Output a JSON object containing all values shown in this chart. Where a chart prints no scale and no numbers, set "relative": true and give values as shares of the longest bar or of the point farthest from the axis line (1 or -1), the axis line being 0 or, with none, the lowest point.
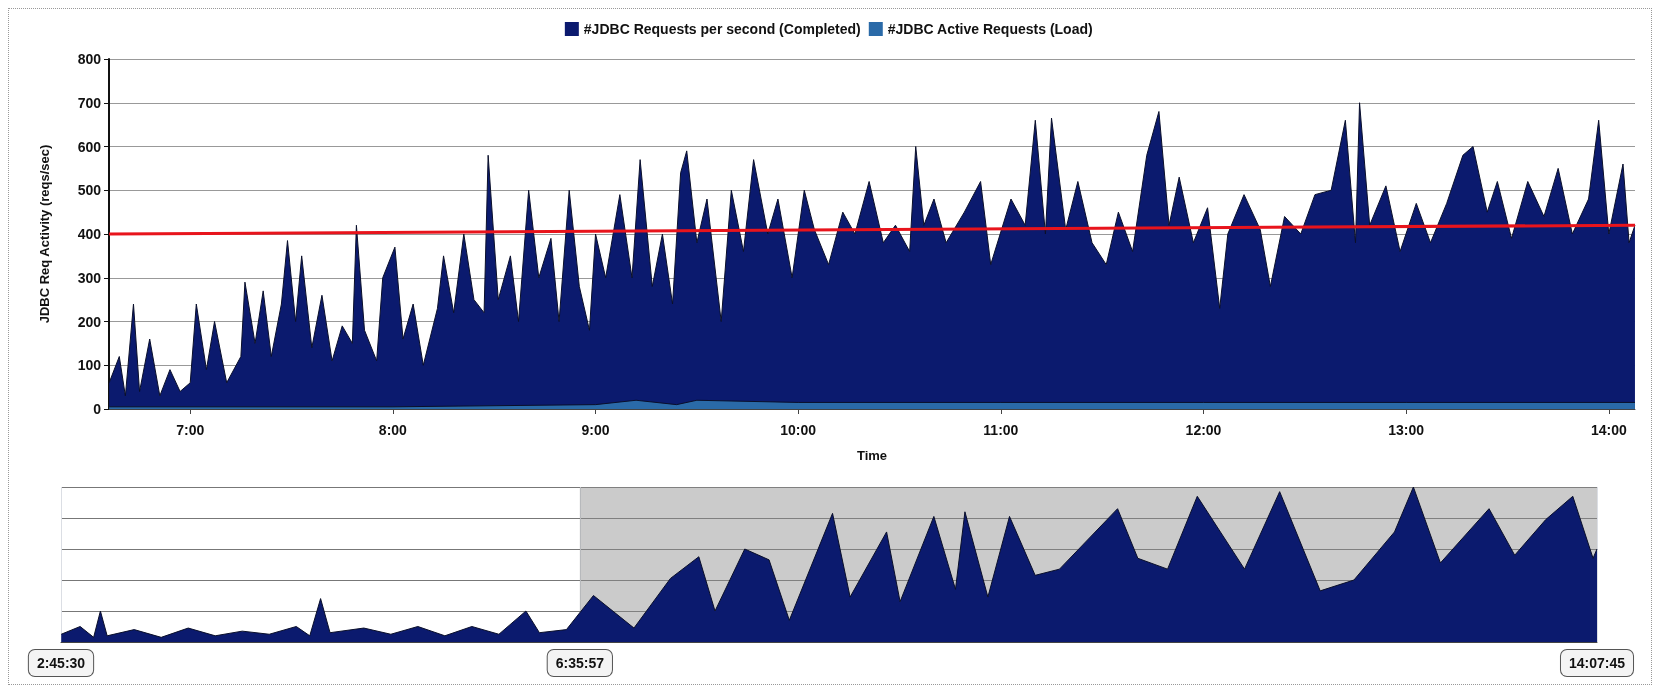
{
  "chart_data": [
    {
      "type": "area",
      "xlabel": "Time",
      "ylabel": "JDBC Req Activity (reqs/sec)",
      "legend": "top",
      "grid": "y",
      "xlim": [
        6.5992,
        14.1292
      ],
      "xticks": [
        {
          "value": 7,
          "label": "7:00"
        },
        {
          "value": 8,
          "label": "8:00"
        },
        {
          "value": 9,
          "label": "9:00"
        },
        {
          "value": 10,
          "label": "10:00"
        },
        {
          "value": 11,
          "label": "11:00"
        },
        {
          "value": 12,
          "label": "12:00"
        },
        {
          "value": 13,
          "label": "13:00"
        },
        {
          "value": 14,
          "label": "14:00"
        }
      ],
      "ylim": [
        0,
        800
      ],
      "yticks": [
        0,
        100,
        200,
        300,
        400,
        500,
        600,
        700,
        800
      ],
      "series": [
        {
          "name": "#JDBC Requests per second (Completed)",
          "color": "#0b1a6e",
          "x": [
            6.6,
            6.65,
            6.68,
            6.72,
            6.75,
            6.8,
            6.85,
            6.9,
            6.95,
            7.0,
            7.03,
            7.08,
            7.12,
            7.18,
            7.25,
            7.27,
            7.32,
            7.36,
            7.4,
            7.45,
            7.48,
            7.52,
            7.55,
            7.6,
            7.65,
            7.7,
            7.75,
            7.8,
            7.82,
            7.86,
            7.92,
            7.95,
            8.01,
            8.05,
            8.1,
            8.15,
            8.22,
            8.25,
            8.3,
            8.35,
            8.4,
            8.45,
            8.47,
            8.52,
            8.58,
            8.62,
            8.67,
            8.72,
            8.78,
            8.82,
            8.87,
            8.92,
            8.97,
            9.0,
            9.05,
            9.12,
            9.18,
            9.22,
            9.28,
            9.33,
            9.38,
            9.42,
            9.45,
            9.5,
            9.55,
            9.62,
            9.67,
            9.73,
            9.78,
            9.85,
            9.9,
            9.97,
            10.03,
            10.08,
            10.15,
            10.22,
            10.28,
            10.35,
            10.42,
            10.48,
            10.55,
            10.58,
            10.62,
            10.67,
            10.73,
            10.82,
            10.9,
            10.95,
            11.05,
            11.12,
            11.17,
            11.22,
            11.25,
            11.32,
            11.38,
            11.45,
            11.52,
            11.58,
            11.65,
            11.72,
            11.78,
            11.83,
            11.88,
            11.95,
            12.02,
            12.08,
            12.12,
            12.2,
            12.28,
            12.33,
            12.4,
            12.48,
            12.55,
            12.63,
            12.7,
            12.75,
            12.77,
            12.82,
            12.9,
            12.97,
            13.05,
            13.12,
            13.2,
            13.28,
            13.33,
            13.4,
            13.45,
            13.52,
            13.6,
            13.68,
            13.75,
            13.82,
            13.9,
            13.95,
            14.0,
            14.07,
            14.1,
            14.129
          ],
          "values": [
            60,
            120,
            30,
            240,
            40,
            160,
            30,
            90,
            40,
            60,
            240,
            90,
            200,
            60,
            120,
            290,
            150,
            270,
            120,
            240,
            385,
            200,
            350,
            140,
            260,
            110,
            190,
            150,
            420,
            180,
            110,
            300,
            370,
            160,
            240,
            100,
            230,
            350,
            220,
            400,
            250,
            220,
            580,
            250,
            350,
            200,
            500,
            300,
            390,
            200,
            500,
            280,
            180,
            400,
            300,
            490,
            300,
            570,
            280,
            400,
            240,
            540,
            590,
            380,
            480,
            200,
            500,
            360,
            570,
            400,
            480,
            300,
            500,
            410,
            330,
            450,
            400,
            520,
            380,
            420,
            360,
            600,
            420,
            480,
            380,
            450,
            520,
            330,
            480,
            420,
            660,
            400,
            665,
            410,
            520,
            380,
            330,
            450,
            360,
            580,
            680,
            420,
            530,
            380,
            460,
            230,
            400,
            490,
            410,
            280,
            440,
            400,
            490,
            500,
            660,
            380,
            700,
            420,
            510,
            360,
            470,
            380,
            470,
            580,
            600,
            450,
            520,
            390,
            520,
            440,
            550,
            400,
            480,
            660,
            400,
            560,
            380,
            420
          ]
        },
        {
          "name": "#JDBC Active Requests (Load)",
          "color": "#2a6aa8",
          "x": [
            6.6,
            8.0,
            9.0,
            9.2,
            9.4,
            9.5,
            10.0,
            11.0,
            12.0,
            13.0,
            14.129
          ],
          "values": [
            5,
            5,
            10,
            20,
            10,
            20,
            15,
            15,
            15,
            15,
            15
          ]
        },
        {
          "type": "line",
          "color": "#e8141c",
          "x": [
            6.5992,
            14.1292
          ],
          "values": [
            400,
            420
          ]
        }
      ]
    },
    {
      "type": "area",
      "relative": true,
      "grid": true,
      "xlim": [
        2.7583,
        14.1292
      ],
      "xticks": [
        {
          "value": 2.7583,
          "label": "2:45:30"
        },
        {
          "value": 6.5992,
          "label": "6:35:57"
        },
        {
          "value": 14.1292,
          "label": "14:07:45"
        }
      ],
      "bands": [
        {
          "axis": "x",
          "from": 6.5992,
          "to": 14.1292,
          "color": "#8c8c8c"
        }
      ],
      "series": [
        {
          "color": "#0b1a6e",
          "x": [
            2.76,
            2.9,
            3.0,
            3.05,
            3.1,
            3.3,
            3.5,
            3.7,
            3.9,
            4.1,
            4.3,
            4.5,
            4.6,
            4.68,
            4.75,
            5.0,
            5.2,
            5.4,
            5.6,
            5.8,
            6.0,
            6.2,
            6.3,
            6.5,
            6.7,
            7.0,
            7.27,
            7.48,
            7.6,
            7.82,
            8.0,
            8.15,
            8.47,
            8.6,
            8.87,
            8.97,
            9.22,
            9.38,
            9.45,
            9.62,
            9.78,
            9.97,
            10.15,
            10.58,
            10.73,
            10.95,
            11.17,
            11.52,
            11.78,
            12.08,
            12.33,
            12.63,
            12.77,
            12.97,
            13.33,
            13.52,
            13.75,
            13.95,
            14.1,
            14.129
          ],
          "values": [
            0.05,
            0.1,
            0.03,
            0.2,
            0.04,
            0.08,
            0.03,
            0.09,
            0.04,
            0.07,
            0.05,
            0.1,
            0.04,
            0.28,
            0.06,
            0.09,
            0.05,
            0.1,
            0.04,
            0.1,
            0.05,
            0.2,
            0.06,
            0.08,
            0.3,
            0.09,
            0.41,
            0.55,
            0.2,
            0.6,
            0.53,
            0.14,
            0.83,
            0.29,
            0.71,
            0.26,
            0.81,
            0.34,
            0.84,
            0.29,
            0.81,
            0.43,
            0.47,
            0.86,
            0.54,
            0.47,
            0.94,
            0.47,
            0.97,
            0.33,
            0.4,
            0.71,
            1,
            0.51,
            0.86,
            0.56,
            0.79,
            0.94,
            0.54,
            0.6
          ]
        }
      ]
    }
  ]
}
